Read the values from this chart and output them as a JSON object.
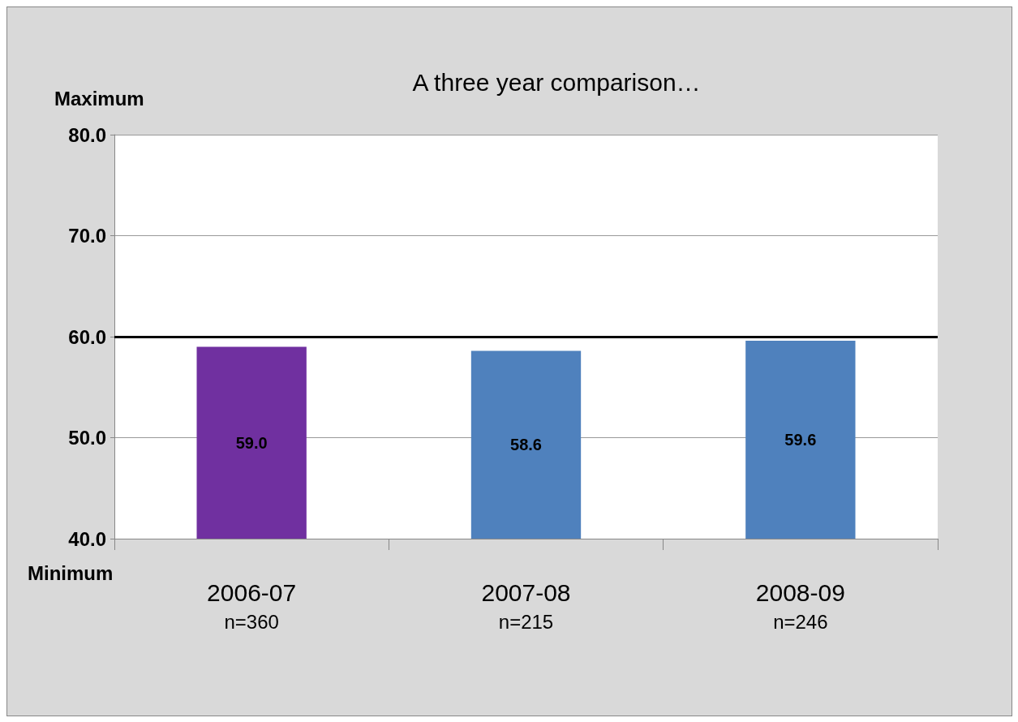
{
  "chart_data": {
    "type": "bar",
    "title": "A three year comparison…",
    "categories": [
      "2006-07\nn=360",
      "2007-08\nn=215",
      "2008-09\nn=246"
    ],
    "values": [
      59.0,
      58.6,
      59.6
    ],
    "colors": [
      "#7030a0",
      "#4f81bd",
      "#4f81bd"
    ],
    "ylim": [
      40,
      80
    ],
    "yticks": [
      {
        "value": 40,
        "label": "40.0"
      },
      {
        "value": 50,
        "label": "50.0"
      },
      {
        "value": 60,
        "label": "60.0"
      },
      {
        "value": 70,
        "label": "70.0"
      },
      {
        "value": 80,
        "label": "80.0"
      }
    ],
    "value_labels": [
      "59.0",
      "58.6",
      "59.6"
    ],
    "grid": "y",
    "ref_lines": [
      {
        "axis": "y",
        "value": 60,
        "color": "#000000"
      }
    ],
    "annotations": [
      "Maximum",
      "Minimum"
    ]
  }
}
